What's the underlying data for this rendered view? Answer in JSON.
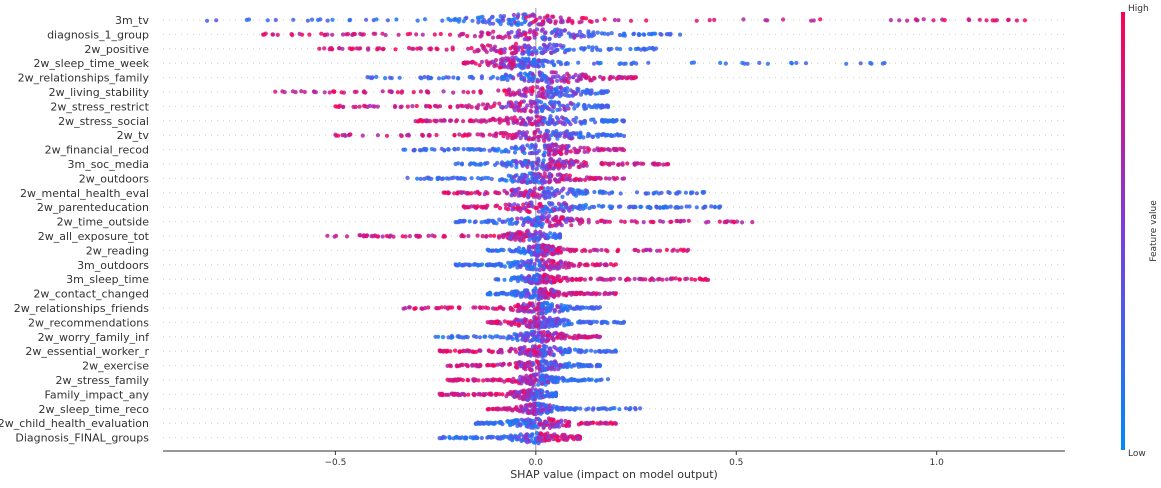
{
  "chart_data": {
    "type": "scatter",
    "subtype": "shap-beeswarm",
    "title": "",
    "xlabel": "SHAP value (impact on model output)",
    "xlim": [
      -0.93,
      1.32
    ],
    "xticks": [
      -0.5,
      0.0,
      0.5,
      1.0
    ],
    "xtick_labels": [
      "−0.5",
      "0.0",
      "0.5",
      "1.0"
    ],
    "zero_line": 0.0,
    "colorbar": {
      "title": "Feature value",
      "high_label": "High",
      "low_label": "Low",
      "low_color": "#008afb",
      "mid_color": "#7c3de0",
      "high_color": "#ff0052"
    },
    "features": [
      {
        "name": "3m_tv",
        "range": [
          -0.82,
          1.22
        ],
        "low_side": "neg",
        "core": [
          -0.2,
          0.15
        ]
      },
      {
        "name": "diagnosis_1_group",
        "range": [
          -0.68,
          0.36
        ],
        "low_side": "pos",
        "core": [
          -0.18,
          0.2
        ]
      },
      {
        "name": "2w_positive",
        "range": [
          -0.54,
          0.3
        ],
        "low_side": "pos",
        "core": [
          -0.2,
          0.15
        ]
      },
      {
        "name": "2w_sleep_time_week",
        "range": [
          -0.18,
          0.87
        ],
        "low_side": "pos",
        "core": [
          -0.15,
          0.05
        ]
      },
      {
        "name": "2w_relationships_family",
        "range": [
          -0.42,
          0.25
        ],
        "low_side": "neg",
        "core": [
          -0.12,
          0.18
        ]
      },
      {
        "name": "2w_living_stability",
        "range": [
          -0.65,
          0.18
        ],
        "low_side": "pos",
        "core": [
          -0.1,
          0.15
        ]
      },
      {
        "name": "2w_stress_restrict",
        "range": [
          -0.5,
          0.18
        ],
        "low_side": "pos",
        "core": [
          -0.15,
          0.15
        ]
      },
      {
        "name": "2w_stress_social",
        "range": [
          -0.3,
          0.22
        ],
        "low_side": "pos",
        "core": [
          -0.12,
          0.15
        ]
      },
      {
        "name": "2w_tv",
        "range": [
          -0.5,
          0.22
        ],
        "low_side": "pos",
        "core": [
          -0.1,
          0.15
        ]
      },
      {
        "name": "2w_financial_recod",
        "range": [
          -0.33,
          0.22
        ],
        "low_side": "neg",
        "core": [
          -0.1,
          0.15
        ]
      },
      {
        "name": "3m_soc_media",
        "range": [
          -0.2,
          0.33
        ],
        "low_side": "neg",
        "core": [
          -0.1,
          0.15
        ]
      },
      {
        "name": "2w_outdoors",
        "range": [
          -0.32,
          0.22
        ],
        "low_side": "neg",
        "core": [
          -0.1,
          0.12
        ]
      },
      {
        "name": "2w_mental_health_eval",
        "range": [
          -0.23,
          0.42
        ],
        "low_side": "pos",
        "core": [
          -0.12,
          0.15
        ]
      },
      {
        "name": "2w_parenteducation",
        "range": [
          -0.18,
          0.46
        ],
        "low_side": "pos",
        "core": [
          -0.12,
          0.15
        ]
      },
      {
        "name": "2w_time_outside",
        "range": [
          -0.2,
          0.54
        ],
        "low_side": "neg",
        "core": [
          -0.1,
          0.15
        ]
      },
      {
        "name": "2w_all_exposure_tot",
        "range": [
          -0.52,
          0.06
        ],
        "low_side": "pos",
        "core": [
          -0.1,
          0.06
        ]
      },
      {
        "name": "2w_reading",
        "range": [
          -0.12,
          0.38
        ],
        "low_side": "neg",
        "core": [
          -0.06,
          0.08
        ]
      },
      {
        "name": "3m_outdoors",
        "range": [
          -0.2,
          0.2
        ],
        "low_side": "neg",
        "core": [
          -0.08,
          0.1
        ]
      },
      {
        "name": "3m_sleep_time",
        "range": [
          -0.1,
          0.43
        ],
        "low_side": "neg",
        "core": [
          -0.06,
          0.08
        ]
      },
      {
        "name": "2w_contact_changed",
        "range": [
          -0.12,
          0.2
        ],
        "low_side": "neg",
        "core": [
          -0.06,
          0.08
        ]
      },
      {
        "name": "2w_relationships_friends",
        "range": [
          -0.33,
          0.16
        ],
        "low_side": "pos",
        "core": [
          -0.08,
          0.1
        ]
      },
      {
        "name": "2w_recommendations",
        "range": [
          -0.12,
          0.22
        ],
        "low_side": "pos",
        "core": [
          -0.08,
          0.1
        ]
      },
      {
        "name": "2w_worry_family_inf",
        "range": [
          -0.25,
          0.16
        ],
        "low_side": "neg",
        "core": [
          -0.08,
          0.1
        ]
      },
      {
        "name": "2w_essential_worker_r",
        "range": [
          -0.24,
          0.2
        ],
        "low_side": "pos",
        "core": [
          -0.08,
          0.1
        ]
      },
      {
        "name": "2w_exercise",
        "range": [
          -0.22,
          0.16
        ],
        "low_side": "pos",
        "core": [
          -0.08,
          0.1
        ]
      },
      {
        "name": "2w_stress_family",
        "range": [
          -0.22,
          0.18
        ],
        "low_side": "pos",
        "core": [
          -0.08,
          0.08
        ]
      },
      {
        "name": "Family_impact_any",
        "range": [
          -0.24,
          0.05
        ],
        "low_side": "pos",
        "core": [
          -0.08,
          0.05
        ]
      },
      {
        "name": "2w_sleep_time_reco",
        "range": [
          -0.12,
          0.26
        ],
        "low_side": "pos",
        "core": [
          -0.06,
          0.06
        ]
      },
      {
        "name": "2w_child_health_evaluation",
        "range": [
          -0.15,
          0.2
        ],
        "low_side": "neg",
        "core": [
          -0.08,
          0.1
        ]
      },
      {
        "name": "Diagnosis_FINAL_groups",
        "range": [
          -0.24,
          0.11
        ],
        "low_side": "neg",
        "core": [
          -0.08,
          0.1
        ]
      }
    ]
  }
}
